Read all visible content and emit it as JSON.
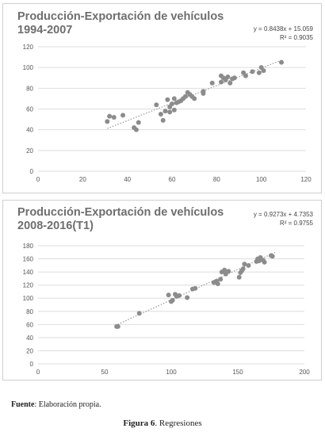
{
  "chart_data": [
    {
      "type": "scatter",
      "title_line1": "Producción-Exportación de vehículos",
      "title_line2": "1994-2007",
      "equation": "y = 0.8438x + 15.059",
      "r_squared": "R² = 0.9035",
      "xlim": [
        0,
        120
      ],
      "ylim": [
        0,
        120
      ],
      "xticks": [
        0,
        20,
        40,
        60,
        80,
        100,
        120
      ],
      "yticks": [
        0,
        20,
        40,
        60,
        80,
        100,
        120
      ],
      "trendline": {
        "slope": 0.8438,
        "intercept": 15.059,
        "x_range": [
          31,
          109
        ]
      },
      "grid": true,
      "marker_color": "#8c8c8c",
      "trend_color": "#9a9a9a",
      "points": [
        [
          31,
          48
        ],
        [
          32,
          53
        ],
        [
          34,
          52
        ],
        [
          38,
          54
        ],
        [
          43,
          42
        ],
        [
          44,
          40
        ],
        [
          45,
          47
        ],
        [
          53,
          64
        ],
        [
          55,
          55
        ],
        [
          56,
          49
        ],
        [
          57,
          58
        ],
        [
          58,
          69
        ],
        [
          59,
          62
        ],
        [
          59,
          57
        ],
        [
          60,
          65
        ],
        [
          61,
          70
        ],
        [
          61,
          59
        ],
        [
          62,
          66
        ],
        [
          63,
          67
        ],
        [
          64,
          68
        ],
        [
          65,
          70
        ],
        [
          66,
          72
        ],
        [
          67,
          76
        ],
        [
          68,
          74
        ],
        [
          69,
          72
        ],
        [
          70,
          70
        ],
        [
          74,
          75
        ],
        [
          74,
          77
        ],
        [
          78,
          85
        ],
        [
          82,
          86
        ],
        [
          82,
          92
        ],
        [
          83,
          90
        ],
        [
          84,
          88
        ],
        [
          85,
          91
        ],
        [
          86,
          85
        ],
        [
          87,
          89
        ],
        [
          88,
          90
        ],
        [
          92,
          95
        ],
        [
          93,
          92
        ],
        [
          96,
          96
        ],
        [
          99,
          95
        ],
        [
          100,
          100
        ],
        [
          101,
          97
        ],
        [
          109,
          105
        ]
      ]
    },
    {
      "type": "scatter",
      "title_line1": "Producción-Exportación de vehículos",
      "title_line2": "2008-2016(T1)",
      "equation": "y = 0.9273x + 4.7353",
      "r_squared": "R² = 0.9755",
      "xlim": [
        0,
        200
      ],
      "ylim": [
        0,
        180
      ],
      "xticks": [
        0,
        50,
        100,
        150,
        200
      ],
      "yticks": [
        0,
        20,
        40,
        60,
        80,
        100,
        120,
        140,
        160,
        180
      ],
      "trendline": {
        "slope": 0.9273,
        "intercept": 4.7353,
        "x_range": [
          58,
          178
        ]
      },
      "grid": true,
      "marker_color": "#8c8c8c",
      "trend_color": "#9a9a9a",
      "points": [
        [
          59,
          57
        ],
        [
          60,
          57
        ],
        [
          76,
          77
        ],
        [
          98,
          105
        ],
        [
          100,
          95
        ],
        [
          101,
          97
        ],
        [
          103,
          106
        ],
        [
          104,
          103
        ],
        [
          106,
          104
        ],
        [
          112,
          101
        ],
        [
          116,
          114
        ],
        [
          118,
          115
        ],
        [
          132,
          124
        ],
        [
          134,
          126
        ],
        [
          135,
          122
        ],
        [
          137,
          129
        ],
        [
          138,
          140
        ],
        [
          140,
          143
        ],
        [
          141,
          137
        ],
        [
          143,
          141
        ],
        [
          151,
          132
        ],
        [
          152,
          139
        ],
        [
          153,
          142
        ],
        [
          154,
          145
        ],
        [
          155,
          152
        ],
        [
          158,
          150
        ],
        [
          164,
          156
        ],
        [
          165,
          160
        ],
        [
          166,
          157
        ],
        [
          167,
          162
        ],
        [
          169,
          158
        ],
        [
          170,
          155
        ],
        [
          175,
          165
        ],
        [
          176,
          164
        ]
      ]
    }
  ],
  "footer": {
    "source_label": "Fuente",
    "source_text": ": Elaboración propia.",
    "figure_label": "Figura 6",
    "figure_text": ". Regresiones"
  }
}
